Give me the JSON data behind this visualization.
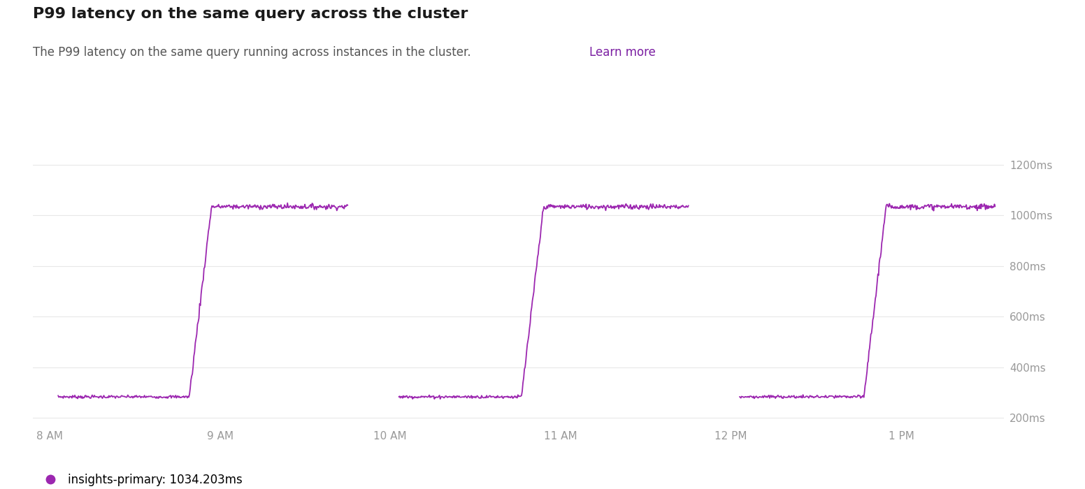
{
  "title": "P99 latency on the same query across the cluster",
  "subtitle_plain": "The P99 latency on the same query running across instances in the cluster. ",
  "subtitle_link_text": "Learn more",
  "background_color": "#ffffff",
  "line_color": "#9c27b0",
  "grid_color": "#e8e8e8",
  "tick_label_color": "#999999",
  "title_color": "#1a1a1a",
  "subtitle_color": "#555555",
  "link_color": "#7b1fa2",
  "y_ticks": [
    200,
    400,
    600,
    800,
    1000,
    1200
  ],
  "y_labels": [
    "200ms",
    "400ms",
    "600ms",
    "800ms",
    "1000ms",
    "1200ms"
  ],
  "x_labels": [
    "8 AM",
    "9 AM",
    "10 AM",
    "11 AM",
    "12 PM",
    "1 PM"
  ],
  "x_tick_pos": [
    0,
    1,
    2,
    3,
    4,
    5
  ],
  "legend_label": "insights-primary: 1034.203ms",
  "legend_color": "#9c27b0",
  "ylim": [
    170,
    1290
  ],
  "xlim": [
    -0.1,
    5.6
  ],
  "low_val": 283,
  "high_val": 1034,
  "low_noise": 3,
  "high_noise": 5,
  "rise_duration": 0.13,
  "figsize": [
    15.52,
    7.0
  ],
  "dpi": 100,
  "seg1_start": 0.05,
  "seg1_end": 1.75,
  "seg1_rise": 0.82,
  "seg2_start": 2.05,
  "seg2_end": 3.75,
  "seg2_rise": 2.77,
  "seg3_start": 4.05,
  "seg3_end": 5.55,
  "seg3_rise": 4.78
}
